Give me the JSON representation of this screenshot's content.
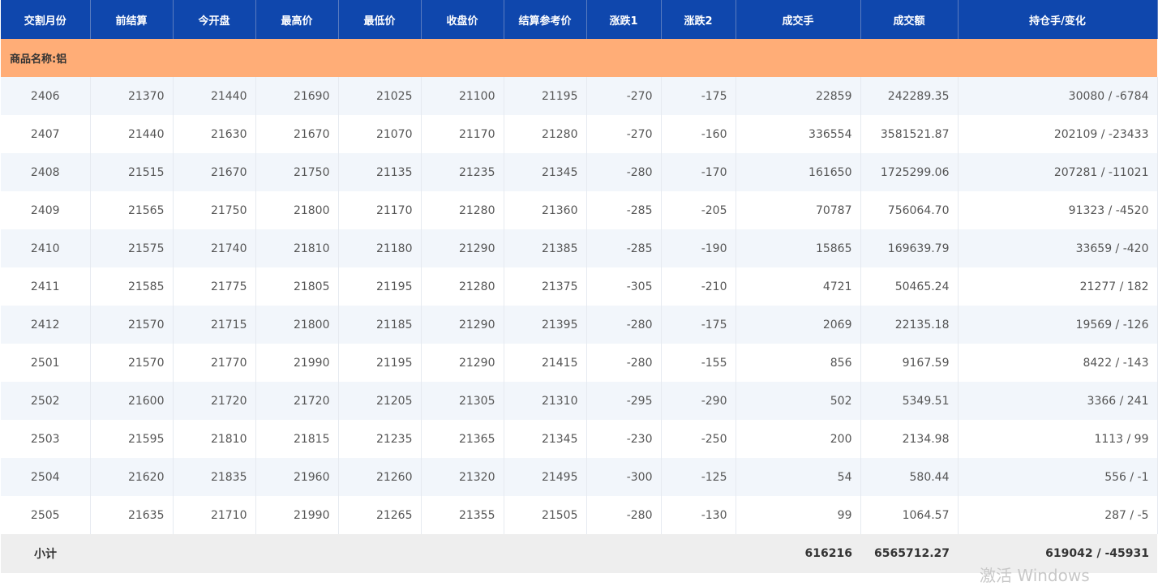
{
  "headers": [
    "交割月份",
    "前结算",
    "今开盘",
    "最高价",
    "最低价",
    "收盘价",
    "结算参考价",
    "涨跌1",
    "涨跌2",
    "成交手",
    "成交额",
    "持仓手/变化"
  ],
  "product_label": "商品名称:铝",
  "rows": [
    [
      "2406",
      "21370",
      "21440",
      "21690",
      "21025",
      "21100",
      "21195",
      "-270",
      "-175",
      "22859",
      "242289.35",
      "30080 / -6784"
    ],
    [
      "2407",
      "21440",
      "21630",
      "21670",
      "21070",
      "21170",
      "21280",
      "-270",
      "-160",
      "336554",
      "3581521.87",
      "202109 / -23433"
    ],
    [
      "2408",
      "21515",
      "21670",
      "21750",
      "21135",
      "21235",
      "21345",
      "-280",
      "-170",
      "161650",
      "1725299.06",
      "207281 / -11021"
    ],
    [
      "2409",
      "21565",
      "21750",
      "21800",
      "21170",
      "21280",
      "21360",
      "-285",
      "-205",
      "70787",
      "756064.70",
      "91323 / -4520"
    ],
    [
      "2410",
      "21575",
      "21740",
      "21810",
      "21180",
      "21290",
      "21385",
      "-285",
      "-190",
      "15865",
      "169639.79",
      "33659 / -420"
    ],
    [
      "2411",
      "21585",
      "21775",
      "21805",
      "21195",
      "21280",
      "21375",
      "-305",
      "-210",
      "4721",
      "50465.24",
      "21277 / 182"
    ],
    [
      "2412",
      "21570",
      "21715",
      "21800",
      "21185",
      "21290",
      "21395",
      "-280",
      "-175",
      "2069",
      "22135.18",
      "19569 / -126"
    ],
    [
      "2501",
      "21570",
      "21770",
      "21990",
      "21195",
      "21290",
      "21415",
      "-280",
      "-155",
      "856",
      "9167.59",
      "8422 / -143"
    ],
    [
      "2502",
      "21600",
      "21720",
      "21720",
      "21205",
      "21305",
      "21310",
      "-295",
      "-290",
      "502",
      "5349.51",
      "3366 / 241"
    ],
    [
      "2503",
      "21595",
      "21810",
      "21815",
      "21235",
      "21365",
      "21345",
      "-230",
      "-250",
      "200",
      "2134.98",
      "1113 / 99"
    ],
    [
      "2504",
      "21620",
      "21835",
      "21960",
      "21260",
      "21320",
      "21495",
      "-300",
      "-125",
      "54",
      "580.44",
      "556 / -1"
    ],
    [
      "2505",
      "21635",
      "21710",
      "21990",
      "21265",
      "21355",
      "21505",
      "-280",
      "-130",
      "99",
      "1064.57",
      "287 / -5"
    ]
  ],
  "subtotal": {
    "label": "小计",
    "volume": "616216",
    "amount": "6565712.27",
    "open_interest": "619042 / -45931"
  },
  "watermark": "激活 Windows"
}
